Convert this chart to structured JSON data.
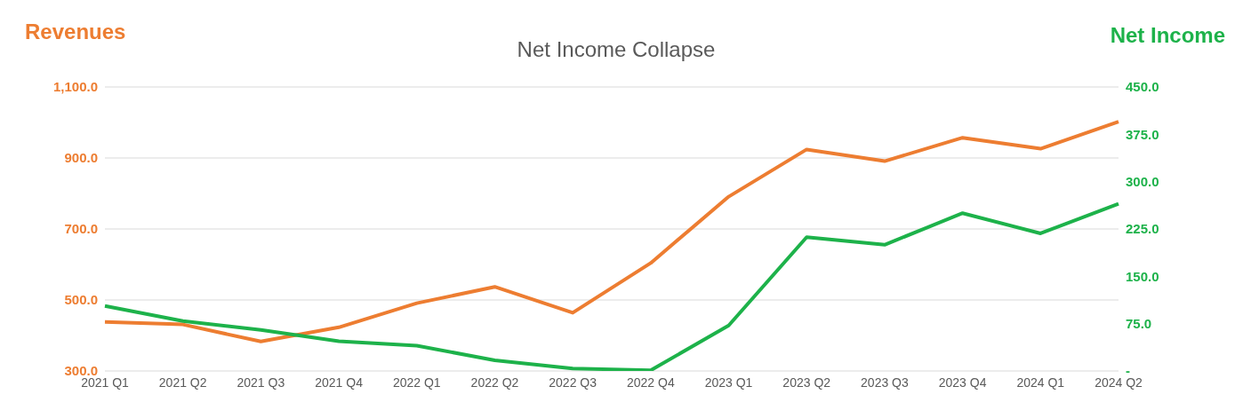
{
  "chart_data": {
    "type": "line",
    "title": "Net Income Collapse",
    "ylabel": "Revenues",
    "y2label": "Net Income",
    "categories": [
      "2021 Q1",
      "2021 Q2",
      "2021 Q3",
      "2021 Q4",
      "2022 Q1",
      "2022 Q2",
      "2022 Q3",
      "2022 Q4",
      "2023 Q1",
      "2023 Q2",
      "2023 Q3",
      "2023 Q4",
      "2024 Q1",
      "2024 Q2"
    ],
    "series": [
      {
        "color": "#ed7d31",
        "values": [
          438,
          431,
          383,
          423,
          491,
          537,
          464,
          604,
          791,
          924,
          891,
          957,
          926,
          1002
        ]
      },
      {
        "color": "#1db24a",
        "axis": "y2",
        "values": [
          103,
          79,
          65,
          47,
          40,
          17,
          4,
          1,
          72,
          212,
          200,
          250,
          218,
          265
        ]
      }
    ],
    "ylim": [
      300,
      1100
    ],
    "yticks": [
      {
        "value": 300,
        "label": "300.0"
      },
      {
        "value": 500,
        "label": "500.0"
      },
      {
        "value": 700,
        "label": "700.0"
      },
      {
        "value": 900,
        "label": "900.0"
      },
      {
        "value": 1100,
        "label": "1,100.0"
      }
    ],
    "y2lim": [
      0,
      450
    ],
    "y2ticks": [
      {
        "value": 0,
        "label": "-"
      },
      {
        "value": 75,
        "label": "75.0"
      },
      {
        "value": 150,
        "label": "150.0"
      },
      {
        "value": 225,
        "label": "225.0"
      },
      {
        "value": 300,
        "label": "300.0"
      },
      {
        "value": 375,
        "label": "375.0"
      },
      {
        "value": 450,
        "label": "450.0"
      }
    ],
    "grid": "y",
    "legend": false,
    "marker": "none",
    "line_style": "solid"
  }
}
